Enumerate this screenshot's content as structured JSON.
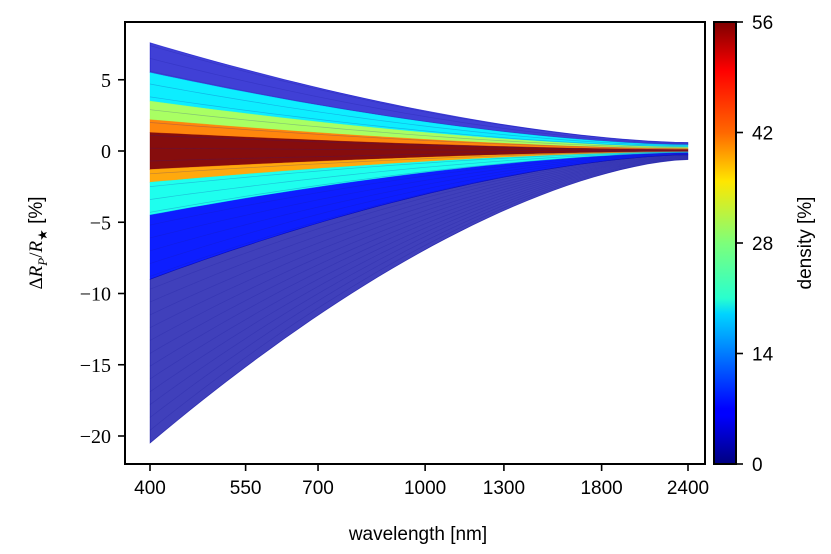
{
  "chart_data": {
    "type": "line",
    "x": [
      400,
      550,
      700,
      1000,
      1300,
      1800,
      2400
    ],
    "x_tick_labels": [
      "400",
      "550",
      "700",
      "1000",
      "1300",
      "1800",
      "2400"
    ],
    "xlabel": "wavelength [nm]",
    "ylabel": "ΔR_P/R_★ [%]",
    "y_tick_labels": [
      "5",
      "0",
      "−5",
      "−10",
      "−15",
      "−20"
    ],
    "y_ticks": [
      5,
      0,
      -5,
      -10,
      -15,
      -20
    ],
    "ylim": [
      -22,
      9
    ],
    "xlim": [
      340,
      2700
    ],
    "x_scale": "log",
    "colorbar": {
      "label": "density [%]",
      "ticks": [
        0,
        14,
        28,
        42,
        56
      ],
      "tick_labels": [
        "0",
        "14",
        "28",
        "42",
        "56"
      ],
      "range": [
        0,
        56
      ],
      "colormap": "jet"
    },
    "envelope": {
      "start_wavelength": 400,
      "end_wavelength": 2400,
      "upper_at_start": 7.6,
      "lower_at_start": -20.5,
      "upper_at_end": 0.6,
      "lower_at_end": -0.6
    },
    "density_bands": [
      {
        "upper": 7.6,
        "lower": 5.5,
        "density": 4
      },
      {
        "upper": 5.5,
        "lower": 3.5,
        "density": 20
      },
      {
        "upper": 3.5,
        "lower": 2.2,
        "density": 30
      },
      {
        "upper": 2.2,
        "lower": 1.3,
        "density": 42
      },
      {
        "upper": 1.3,
        "lower": -1.3,
        "density": 56
      },
      {
        "upper": -1.3,
        "lower": -2.2,
        "density": 40
      },
      {
        "upper": -2.2,
        "lower": -4.5,
        "density": 22
      },
      {
        "upper": -4.5,
        "lower": -9.0,
        "density": 8
      },
      {
        "upper": -9.0,
        "lower": -20.5,
        "density": 2
      }
    ]
  }
}
